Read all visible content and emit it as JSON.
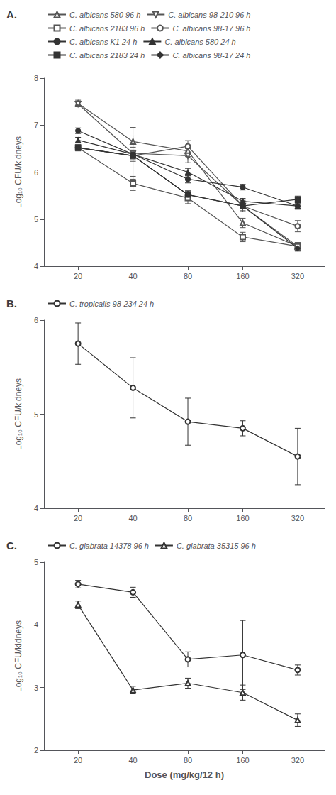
{
  "chart_data": [
    {
      "type": "line",
      "title": "A.",
      "ylabel": "Log₁₀ CFU/kidneys",
      "x": [
        20,
        40,
        80,
        160,
        320
      ],
      "xlim": [
        13,
        450
      ],
      "xticks": [
        20,
        40,
        80,
        160,
        320
      ],
      "ylim": [
        4,
        8
      ],
      "yticks": [
        4,
        5,
        6,
        7,
        8
      ],
      "log": "x",
      "grid": false,
      "legend": "upper right",
      "series": [
        {
          "name": "C. albicans 580 96 h",
          "color": "#555555",
          "marker": "triangle-up-open",
          "values": [
            7.46,
            6.65,
            6.45,
            4.92,
            4.42
          ],
          "yerr": [
            0.07,
            0.12,
            0.12,
            0.1,
            0.08
          ]
        },
        {
          "name": "C. albicans 98-210 96 h",
          "color": "#555555",
          "marker": "triangle-down-open",
          "values": [
            7.45,
            6.4,
            6.35,
            5.28,
            4.42
          ],
          "yerr": [
            0.06,
            0.55,
            0.15,
            0.12,
            0.08
          ]
        },
        {
          "name": "C. albicans 2183 96 h",
          "color": "#555555",
          "marker": "square-open",
          "values": [
            6.52,
            5.76,
            5.45,
            4.62,
            4.42
          ],
          "yerr": [
            0.06,
            0.15,
            0.12,
            0.1,
            0.08
          ]
        },
        {
          "name": "C. albicans 98-17 96 h",
          "color": "#555555",
          "marker": "circle-open",
          "values": [
            6.52,
            6.35,
            6.55,
            5.28,
            4.85
          ],
          "yerr": [
            0.07,
            0.12,
            0.12,
            0.1,
            0.12
          ]
        },
        {
          "name": "C. albicans K1 24 h",
          "color": "#333333",
          "marker": "circle",
          "values": [
            6.88,
            6.38,
            5.85,
            5.68,
            5.28
          ],
          "yerr": [
            0.06,
            0.06,
            0.08,
            0.06,
            0.06
          ]
        },
        {
          "name": "C. albicans 580 24 h",
          "color": "#333333",
          "marker": "triangle-up",
          "values": [
            6.68,
            6.38,
            6.0,
            5.38,
            5.28
          ],
          "yerr": [
            0.06,
            0.06,
            0.08,
            0.06,
            0.07
          ]
        },
        {
          "name": "C. albicans 2183 24 h",
          "color": "#333333",
          "marker": "square",
          "values": [
            6.52,
            6.35,
            5.52,
            5.28,
            5.42
          ],
          "yerr": [
            0.06,
            0.07,
            0.08,
            0.06,
            0.07
          ]
        },
        {
          "name": "C. albicans 98-17 24 h",
          "color": "#333333",
          "marker": "diamond",
          "values": [
            6.52,
            6.35,
            5.52,
            5.28,
            4.38
          ],
          "yerr": [
            0.06,
            0.06,
            0.08,
            0.06,
            0.06
          ]
        }
      ]
    },
    {
      "type": "line",
      "title": "B.",
      "ylabel": "Log₁₀ CFU/kidneys",
      "x": [
        20,
        40,
        80,
        160,
        320
      ],
      "xlim": [
        13,
        450
      ],
      "xticks": [
        20,
        40,
        80,
        160,
        320
      ],
      "ylim": [
        4,
        6
      ],
      "yticks": [
        4,
        5,
        6
      ],
      "log": "x",
      "grid": false,
      "legend": "upper right",
      "series": [
        {
          "name": "C. tropicalis 98-234 24 h",
          "color": "#333333",
          "marker": "circle-open",
          "values": [
            5.75,
            5.28,
            4.92,
            4.85,
            4.55
          ],
          "yerr": [
            0.22,
            0.32,
            0.25,
            0.08,
            0.3
          ]
        }
      ]
    },
    {
      "type": "line",
      "title": "C.",
      "ylabel": "Log₁₀ CFU/kidneys",
      "xlabel": "Dose (mg/kg/12 h)",
      "x": [
        20,
        40,
        80,
        160,
        320
      ],
      "xlim": [
        13,
        450
      ],
      "xticks": [
        20,
        40,
        80,
        160,
        320
      ],
      "ylim": [
        2,
        5
      ],
      "yticks": [
        2,
        3,
        4,
        5
      ],
      "log": "x",
      "grid": false,
      "legend": "upper right",
      "series": [
        {
          "name": "C. glabrata 14378 96 h",
          "color": "#333333",
          "marker": "circle-open",
          "values": [
            4.65,
            4.52,
            3.45,
            3.52,
            3.28
          ],
          "yerr": [
            0.06,
            0.08,
            0.12,
            0.55,
            0.08
          ]
        },
        {
          "name": "C. glabrata 35315 96 h",
          "color": "#333333",
          "marker": "triangle-up-open",
          "values": [
            4.32,
            2.96,
            3.07,
            2.92,
            2.48
          ],
          "yerr": [
            0.06,
            0.06,
            0.08,
            0.12,
            0.1
          ]
        }
      ]
    }
  ]
}
